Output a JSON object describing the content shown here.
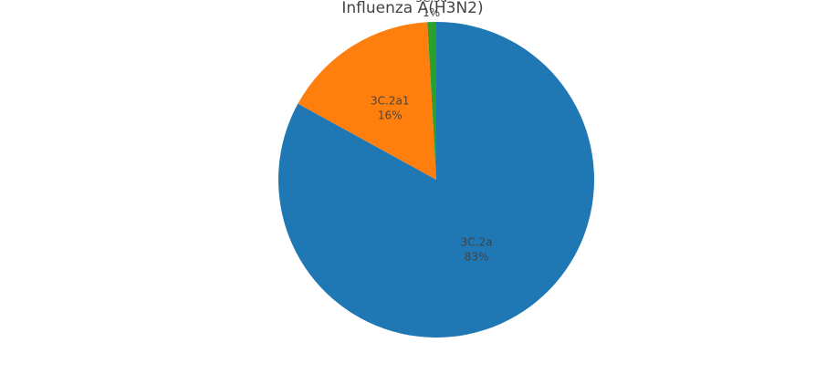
{
  "chart_data": {
    "type": "pie",
    "title": "Influenza A(H3N2)",
    "slices": [
      {
        "label": "3C.2a",
        "percent_label": "83%",
        "value": 83.0,
        "color": "#1f77b4"
      },
      {
        "label": "3C.2a1",
        "percent_label": "16%",
        "value": 16.1,
        "color": "#ff7f0e"
      },
      {
        "label": "3C.3a",
        "percent_label": "1%",
        "value": 0.9,
        "color": "#2ca02c"
      }
    ],
    "legend": "none"
  }
}
